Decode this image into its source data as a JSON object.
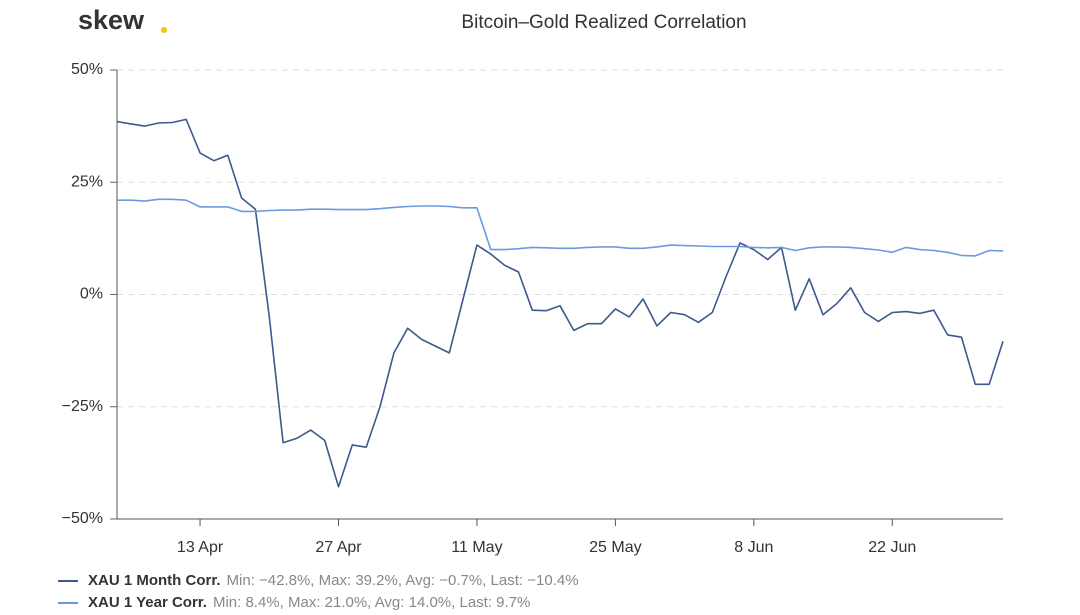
{
  "logo": "skew",
  "chart_data": {
    "type": "line",
    "title": "Bitcoin–Gold Realized Correlation",
    "categories": [
      null,
      null,
      null,
      null,
      null,
      null,
      "13 Apr",
      null,
      null,
      null,
      null,
      null,
      null,
      null,
      null,
      null,
      "27 Apr",
      null,
      null,
      null,
      null,
      null,
      null,
      null,
      null,
      null,
      "11 May",
      null,
      null,
      null,
      null,
      null,
      null,
      null,
      null,
      null,
      "25 May",
      null,
      null,
      null,
      null,
      null,
      null,
      null,
      null,
      null,
      "8 Jun",
      null,
      null,
      null,
      null,
      null,
      null,
      null,
      null,
      null,
      "22 Jun",
      null,
      null,
      null,
      null,
      null,
      null,
      null,
      null
    ],
    "series": [
      {
        "name": "XAU 1 Month Corr.",
        "stats": "Min: −42.8%, Max: 39.2%, Avg: −0.7%, Last: −10.4%",
        "color": "#3d5a8c",
        "values": [
          38.5,
          38,
          37.5,
          38.2,
          38.3,
          39,
          31.5,
          29.8,
          31,
          21.5,
          19,
          -5,
          -33,
          -32,
          -30.2,
          -32.5,
          -42.8,
          -33.5,
          -34,
          -25,
          -13,
          -7.5,
          -10,
          -11.5,
          -13,
          -1,
          11,
          9,
          6.5,
          5,
          -3.5,
          -3.6,
          -2.5,
          -8,
          -6.5,
          -6.5,
          -3.2,
          -5,
          -1,
          -7,
          -4,
          -4.5,
          -6.2,
          -4,
          4,
          11.5,
          10,
          7.8,
          10.5,
          -3.5,
          3.5,
          -4.5,
          -2,
          1.5,
          -4,
          -6,
          -4,
          -3.8,
          -4.2,
          -3.5,
          -9,
          -9.5,
          -20,
          -20,
          -10.4
        ]
      },
      {
        "name": "XAU 1 Year Corr.",
        "stats": "Min: 8.4%, Max: 21.0%, Avg: 14.0%, Last: 9.7%",
        "color": "#6a9be0",
        "values": [
          21,
          21,
          20.8,
          21.2,
          21.2,
          21,
          19.5,
          19.5,
          19.5,
          18.5,
          18.5,
          18.7,
          18.8,
          18.8,
          19,
          19,
          18.9,
          18.9,
          18.9,
          19.1,
          19.4,
          19.6,
          19.7,
          19.7,
          19.6,
          19.3,
          19.3,
          10,
          10,
          10.2,
          10.5,
          10.4,
          10.3,
          10.3,
          10.5,
          10.6,
          10.6,
          10.3,
          10.3,
          10.6,
          11,
          10.9,
          10.8,
          10.7,
          10.7,
          10.7,
          10.5,
          10.4,
          10.5,
          9.8,
          10.4,
          10.6,
          10.6,
          10.5,
          10.2,
          9.9,
          9.4,
          10.5,
          10,
          9.8,
          9.4,
          8.7,
          8.6,
          9.8,
          9.7
        ]
      }
    ],
    "ylim": [
      -50,
      50
    ],
    "yticks": [
      {
        "value": 50,
        "label": "50%"
      },
      {
        "value": 25,
        "label": "25%"
      },
      {
        "value": 0,
        "label": "0%"
      },
      {
        "value": -25,
        "label": "−25%"
      },
      {
        "value": -50,
        "label": "−50%"
      }
    ],
    "grid": true
  }
}
